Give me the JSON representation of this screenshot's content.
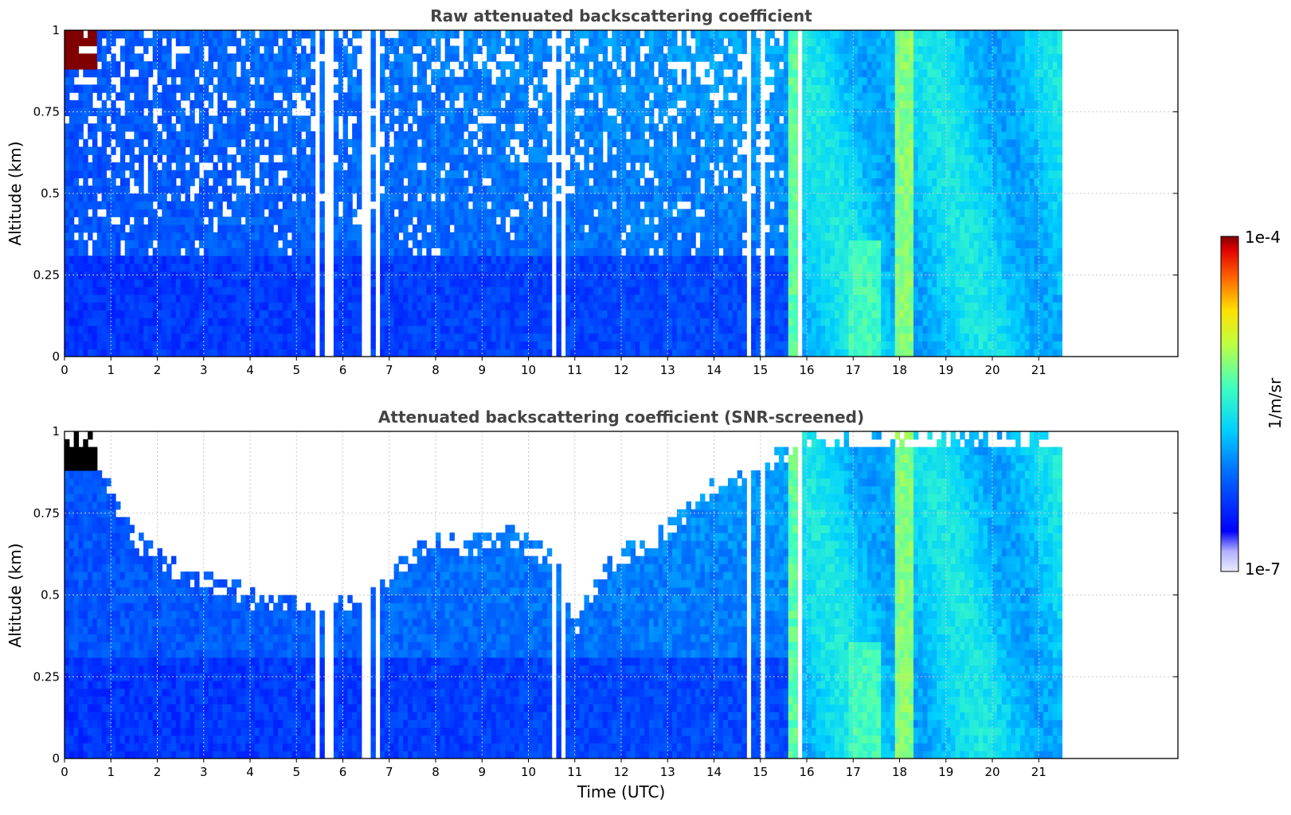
{
  "chart_data": [
    {
      "type": "heatmap",
      "title": "Raw attenuated backscattering coefficient",
      "xlabel": "",
      "ylabel": "Altitude (km)",
      "xlim": [
        0,
        24
      ],
      "ylim": [
        0,
        1
      ],
      "x_ticks": [
        "0",
        "1",
        "2",
        "3",
        "4",
        "5",
        "6",
        "7",
        "8",
        "9",
        "10",
        "11",
        "12",
        "13",
        "14",
        "15",
        "16",
        "17",
        "18",
        "19",
        "20",
        "21"
      ],
      "y_ticks": [
        "0",
        "0.25",
        "0.5",
        "0.75",
        "1"
      ],
      "grid": true,
      "data_extent_hours": [
        0,
        21.5
      ],
      "gaps_hours": [
        [
          5.45,
          5.5
        ],
        [
          5.62,
          5.75
        ],
        [
          6.45,
          6.58
        ],
        [
          6.7,
          6.82
        ],
        [
          10.5,
          10.6
        ],
        [
          10.75,
          10.8
        ],
        [
          14.72,
          14.8
        ],
        [
          15.0,
          15.15
        ],
        [
          15.85,
          15.95
        ]
      ],
      "regions": [
        {
          "x": [
            0,
            0.65
          ],
          "y": [
            0.88,
            1.0
          ],
          "level": "1e-4",
          "note": "cloud"
        },
        {
          "x": [
            0,
            5.5
          ],
          "y": [
            0,
            0.3
          ],
          "level": "1e-6"
        },
        {
          "x": [
            0,
            15.6
          ],
          "y": [
            0.3,
            1.0
          ],
          "level": "1e-6.3"
        },
        {
          "x": [
            15.6,
            21.5
          ],
          "y": [
            0,
            1.0
          ],
          "level": "1e-5.4"
        },
        {
          "x": [
            17.9,
            18.3
          ],
          "y": [
            0,
            1.0
          ],
          "level": "1e-5"
        }
      ]
    },
    {
      "type": "heatmap",
      "title": "Attenuated backscattering coefficient (SNR-screened)",
      "xlabel": "Time (UTC)",
      "ylabel": "Altitude (km)",
      "xlim": [
        0,
        24
      ],
      "ylim": [
        0,
        1
      ],
      "x_ticks": [
        "0",
        "1",
        "2",
        "3",
        "4",
        "5",
        "6",
        "7",
        "8",
        "9",
        "10",
        "11",
        "12",
        "13",
        "14",
        "15",
        "16",
        "17",
        "18",
        "19",
        "20",
        "21"
      ],
      "y_ticks": [
        "0",
        "0.25",
        "0.5",
        "0.75",
        "1"
      ],
      "grid": true,
      "data_extent_hours": [
        0,
        21.5
      ],
      "gaps_hours": [
        [
          5.45,
          5.5
        ],
        [
          5.62,
          5.75
        ],
        [
          6.45,
          6.58
        ],
        [
          6.7,
          6.82
        ],
        [
          10.5,
          10.6
        ],
        [
          10.75,
          10.8
        ],
        [
          14.72,
          14.8
        ],
        [
          15.0,
          15.15
        ],
        [
          15.85,
          15.95
        ]
      ],
      "top_boundary_km": [
        [
          0,
          1.0
        ],
        [
          0.5,
          0.98
        ],
        [
          1,
          0.8
        ],
        [
          1.5,
          0.68
        ],
        [
          2,
          0.62
        ],
        [
          2.5,
          0.58
        ],
        [
          3,
          0.55
        ],
        [
          3.5,
          0.54
        ],
        [
          4,
          0.5
        ],
        [
          4.5,
          0.48
        ],
        [
          5,
          0.48
        ],
        [
          5.5,
          0.49
        ],
        [
          6,
          0.48
        ],
        [
          6.5,
          0.52
        ],
        [
          7,
          0.58
        ],
        [
          7.5,
          0.64
        ],
        [
          8,
          0.7
        ],
        [
          8.5,
          0.65
        ],
        [
          9,
          0.68
        ],
        [
          9.5,
          0.7
        ],
        [
          10,
          0.66
        ],
        [
          10.5,
          0.62
        ],
        [
          11,
          0.42
        ],
        [
          11.5,
          0.58
        ],
        [
          12,
          0.64
        ],
        [
          12.5,
          0.66
        ],
        [
          13,
          0.72
        ],
        [
          13.5,
          0.78
        ],
        [
          14,
          0.85
        ],
        [
          14.5,
          0.88
        ],
        [
          15,
          0.9
        ],
        [
          15.5,
          0.95
        ],
        [
          16,
          1.0
        ],
        [
          21.5,
          1.0
        ]
      ],
      "regions": [
        {
          "x": [
            0,
            0.65
          ],
          "y": [
            0.88,
            1.0
          ],
          "level": "1e-4",
          "note": "cloud (black/saturated)"
        },
        {
          "x": [
            0,
            15.6
          ],
          "y": [
            0,
            0.5
          ],
          "level": "1e-6"
        },
        {
          "x": [
            15.6,
            21.5
          ],
          "y": [
            0,
            1.0
          ],
          "level": "1e-5.4"
        },
        {
          "x": [
            17.9,
            18.3
          ],
          "y": [
            0,
            1.0
          ],
          "level": "1e-5"
        }
      ]
    }
  ],
  "colorbar": {
    "label": "1/m/sr",
    "max_label": "1e-4",
    "min_label": "1e-7",
    "colormap": "jet"
  }
}
